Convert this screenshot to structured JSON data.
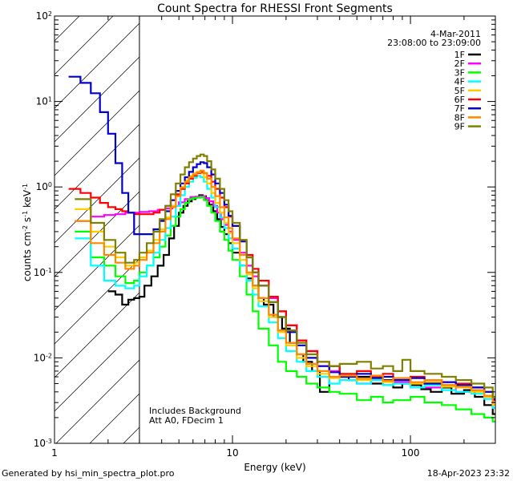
{
  "title": "Count Spectra for RHESSI Front Segments",
  "date": "4-Mar-2011",
  "time_range": "23:08:00 to 23:09:00",
  "footer_left": "Generated by hsi_min_spectra_plot.pro",
  "footer_right": "18-Apr-2023 23:32",
  "note_line1": "Includes Background",
  "note_line2": "Att A0, FDecim 1",
  "chart_data": {
    "type": "line",
    "title": "Count Spectra for RHESSI Front Segments",
    "xlabel": "Energy (keV)",
    "ylabel": "counts cm^-2 s^-1 keV^-1",
    "ylabel_parts": {
      "base": "counts cm",
      "e1": "-2",
      "s": " s",
      "e2": "-1",
      "k": " keV",
      "e3": "-1"
    },
    "xscale": "log",
    "yscale": "log",
    "xlim": [
      1,
      300
    ],
    "ylim": [
      0.001,
      100
    ],
    "x_ticks": [
      {
        "value": 1,
        "label": "1"
      },
      {
        "value": 10,
        "label": "10"
      },
      {
        "value": 100,
        "label": "100"
      }
    ],
    "y_ticks": [
      {
        "value": 0.001,
        "base": "10",
        "exp": "-3"
      },
      {
        "value": 0.01,
        "base": "10",
        "exp": "-2"
      },
      {
        "value": 0.1,
        "base": "10",
        "exp": "-1"
      },
      {
        "value": 1,
        "base": "10",
        "exp": "0"
      },
      {
        "value": 10,
        "base": "10",
        "exp": "1"
      },
      {
        "value": 100,
        "base": "10",
        "exp": "2"
      }
    ],
    "excluded_region": {
      "from": 1,
      "to": 3
    },
    "legend_position": "top-right",
    "series": [
      {
        "name": "1F",
        "color": "#000000",
        "x": [
          2.0,
          2.2,
          2.4,
          2.6,
          2.8,
          3.0,
          3.2,
          3.5,
          3.8,
          4.1,
          4.4,
          4.7,
          5.0,
          5.3,
          5.6,
          5.9,
          6.2,
          6.5,
          6.8,
          7.1,
          7.4,
          7.8,
          8.2,
          8.6,
          9.0,
          9.5,
          10,
          11,
          12,
          13,
          14,
          15,
          17,
          19,
          21,
          23,
          25,
          28,
          31,
          35,
          40,
          45,
          50,
          60,
          70,
          80,
          90,
          100,
          115,
          130,
          150,
          170,
          200,
          230,
          260,
          290
        ],
        "y": [
          0.06,
          0.055,
          0.042,
          0.048,
          0.05,
          0.052,
          0.07,
          0.09,
          0.12,
          0.16,
          0.25,
          0.35,
          0.5,
          0.6,
          0.68,
          0.72,
          0.76,
          0.8,
          0.78,
          0.7,
          0.62,
          0.52,
          0.42,
          0.34,
          0.28,
          0.22,
          0.17,
          0.12,
          0.085,
          0.07,
          0.05,
          0.042,
          0.03,
          0.022,
          0.015,
          0.011,
          0.009,
          0.007,
          0.004,
          0.008,
          0.006,
          0.0055,
          0.006,
          0.005,
          0.0055,
          0.0045,
          0.005,
          0.0048,
          0.0043,
          0.004,
          0.0045,
          0.0038,
          0.0042,
          0.0035,
          0.0028,
          0.0022
        ]
      },
      {
        "name": "2F",
        "color": "#ff00ff",
        "x": [
          1.3,
          1.6,
          1.9,
          2.2,
          2.5,
          2.8,
          3.0,
          3.4,
          3.8,
          4.2,
          4.6,
          5.0,
          5.4,
          5.8,
          6.2,
          6.6,
          7.0,
          7.4,
          7.8,
          8.2,
          8.6,
          9.0,
          9.5,
          10,
          11,
          12,
          13,
          14,
          16,
          18,
          20,
          23,
          26,
          30,
          35,
          40,
          50,
          60,
          70,
          80,
          100,
          120,
          150,
          180,
          220,
          260,
          290
        ],
        "y": [
          0.4,
          0.45,
          0.47,
          0.48,
          0.5,
          0.5,
          0.51,
          0.52,
          0.54,
          0.56,
          0.6,
          0.66,
          0.72,
          0.76,
          0.77,
          0.78,
          0.74,
          0.68,
          0.6,
          0.5,
          0.42,
          0.36,
          0.3,
          0.24,
          0.17,
          0.12,
          0.09,
          0.07,
          0.05,
          0.035,
          0.024,
          0.016,
          0.012,
          0.008,
          0.007,
          0.006,
          0.005,
          0.0055,
          0.0048,
          0.0052,
          0.005,
          0.0045,
          0.0048,
          0.004,
          0.0042,
          0.0035,
          0.0028
        ]
      },
      {
        "name": "3F",
        "color": "#00ff00",
        "x": [
          1.3,
          1.6,
          1.9,
          2.2,
          2.5,
          2.8,
          3.0,
          3.3,
          3.6,
          3.9,
          4.2,
          4.5,
          4.8,
          5.1,
          5.4,
          5.7,
          6.0,
          6.3,
          6.6,
          6.9,
          7.2,
          7.6,
          8.0,
          8.5,
          9.0,
          9.5,
          10,
          11,
          12,
          13,
          14,
          16,
          18,
          20,
          23,
          26,
          30,
          35,
          40,
          50,
          60,
          70,
          80,
          100,
          120,
          150,
          180,
          220,
          260,
          290
        ],
        "y": [
          0.3,
          0.15,
          0.12,
          0.09,
          0.075,
          0.08,
          0.1,
          0.12,
          0.15,
          0.2,
          0.27,
          0.35,
          0.45,
          0.55,
          0.65,
          0.72,
          0.74,
          0.75,
          0.76,
          0.7,
          0.6,
          0.5,
          0.4,
          0.3,
          0.24,
          0.18,
          0.14,
          0.09,
          0.055,
          0.035,
          0.022,
          0.014,
          0.009,
          0.007,
          0.006,
          0.005,
          0.0045,
          0.004,
          0.0038,
          0.0032,
          0.0035,
          0.003,
          0.0032,
          0.0035,
          0.003,
          0.0028,
          0.0025,
          0.0022,
          0.002,
          0.0018
        ]
      },
      {
        "name": "4F",
        "color": "#00ffff",
        "x": [
          1.3,
          1.6,
          1.9,
          2.2,
          2.5,
          2.8,
          3.0,
          3.3,
          3.6,
          3.9,
          4.2,
          4.5,
          4.8,
          5.1,
          5.4,
          5.7,
          6.0,
          6.3,
          6.6,
          6.9,
          7.2,
          7.6,
          8.0,
          8.5,
          9.0,
          9.5,
          10,
          11,
          12,
          13,
          14,
          16,
          18,
          20,
          23,
          26,
          30,
          35,
          40,
          50,
          60,
          70,
          80,
          100,
          120,
          150,
          180,
          220,
          260,
          290
        ],
        "y": [
          0.25,
          0.12,
          0.08,
          0.07,
          0.065,
          0.07,
          0.09,
          0.12,
          0.17,
          0.24,
          0.33,
          0.45,
          0.6,
          0.8,
          1.0,
          1.15,
          1.28,
          1.35,
          1.3,
          1.15,
          0.95,
          0.75,
          0.58,
          0.44,
          0.33,
          0.25,
          0.19,
          0.12,
          0.08,
          0.055,
          0.04,
          0.026,
          0.017,
          0.012,
          0.009,
          0.007,
          0.006,
          0.005,
          0.0055,
          0.005,
          0.0055,
          0.0048,
          0.005,
          0.0045,
          0.0048,
          0.0042,
          0.004,
          0.0038,
          0.0033,
          0.0026
        ]
      },
      {
        "name": "5F",
        "color": "#ffcc00",
        "x": [
          1.3,
          1.6,
          1.9,
          2.2,
          2.5,
          2.8,
          3.0,
          3.3,
          3.6,
          3.9,
          4.2,
          4.5,
          4.8,
          5.1,
          5.4,
          5.7,
          6.0,
          6.3,
          6.6,
          6.9,
          7.2,
          7.6,
          8.0,
          8.5,
          9.0,
          9.5,
          10,
          11,
          12,
          13,
          14,
          16,
          18,
          20,
          23,
          26,
          30,
          35,
          40,
          50,
          60,
          70,
          80,
          100,
          120,
          150,
          180,
          220,
          260,
          290
        ],
        "y": [
          0.55,
          0.3,
          0.2,
          0.15,
          0.12,
          0.13,
          0.15,
          0.18,
          0.24,
          0.32,
          0.44,
          0.6,
          0.8,
          1.0,
          1.2,
          1.35,
          1.45,
          1.5,
          1.45,
          1.3,
          1.1,
          0.85,
          0.65,
          0.5,
          0.38,
          0.29,
          0.22,
          0.14,
          0.095,
          0.065,
          0.046,
          0.03,
          0.02,
          0.014,
          0.01,
          0.008,
          0.0065,
          0.0058,
          0.006,
          0.0055,
          0.006,
          0.0052,
          0.0055,
          0.005,
          0.0052,
          0.0046,
          0.0045,
          0.004,
          0.0035,
          0.0028
        ]
      },
      {
        "name": "6F",
        "color": "#ff0000",
        "x": [
          1.2,
          1.4,
          1.6,
          1.8,
          2.0,
          2.2,
          2.4,
          2.6,
          2.8,
          3.0,
          3.3,
          3.6,
          3.9,
          4.2,
          4.5,
          4.8,
          5.1,
          5.4,
          5.7,
          6.0,
          6.3,
          6.6,
          6.9,
          7.2,
          7.6,
          8.0,
          8.5,
          9.0,
          9.5,
          10,
          11,
          12,
          13,
          14,
          16,
          18,
          20,
          23,
          26,
          30,
          35,
          40,
          50,
          60,
          70,
          80,
          100,
          120,
          150,
          180,
          220,
          260,
          290
        ],
        "y": [
          0.95,
          0.85,
          0.75,
          0.65,
          0.58,
          0.55,
          0.52,
          0.5,
          0.48,
          0.48,
          0.48,
          0.5,
          0.54,
          0.6,
          0.7,
          0.82,
          0.95,
          1.1,
          1.25,
          1.35,
          1.45,
          1.5,
          1.45,
          1.35,
          1.15,
          0.95,
          0.75,
          0.58,
          0.45,
          0.35,
          0.24,
          0.16,
          0.11,
          0.08,
          0.052,
          0.035,
          0.024,
          0.016,
          0.012,
          0.009,
          0.008,
          0.0065,
          0.007,
          0.006,
          0.0065,
          0.0058,
          0.006,
          0.0055,
          0.0052,
          0.005,
          0.0045,
          0.004,
          0.0032
        ]
      },
      {
        "name": "7F",
        "color": "#0000cc",
        "x": [
          1.2,
          1.4,
          1.6,
          1.8,
          2.0,
          2.2,
          2.4,
          2.6,
          2.8,
          3.0,
          3.3,
          3.6,
          3.9,
          4.2,
          4.5,
          4.8,
          5.1,
          5.4,
          5.7,
          6.0,
          6.3,
          6.6,
          6.9,
          7.2,
          7.6,
          8.0,
          8.5,
          9.0,
          9.5,
          10,
          11,
          12,
          13,
          14,
          16,
          18,
          20,
          23,
          26,
          30,
          35,
          40,
          50,
          60,
          70,
          80,
          100,
          120,
          150,
          180,
          220,
          260,
          290
        ],
        "y": [
          19.5,
          16.5,
          12.5,
          7.5,
          4.2,
          1.9,
          0.85,
          0.5,
          0.28,
          0.28,
          0.28,
          0.32,
          0.4,
          0.52,
          0.7,
          0.9,
          1.1,
          1.3,
          1.5,
          1.7,
          1.85,
          1.95,
          1.9,
          1.7,
          1.4,
          1.1,
          0.85,
          0.62,
          0.46,
          0.35,
          0.23,
          0.15,
          0.1,
          0.07,
          0.045,
          0.03,
          0.02,
          0.014,
          0.01,
          0.008,
          0.0068,
          0.006,
          0.0065,
          0.0058,
          0.006,
          0.0055,
          0.0058,
          0.005,
          0.0052,
          0.0048,
          0.0045,
          0.004,
          0.0033
        ]
      },
      {
        "name": "8F",
        "color": "#ff8800",
        "x": [
          1.3,
          1.6,
          1.9,
          2.2,
          2.5,
          2.8,
          3.0,
          3.3,
          3.6,
          3.9,
          4.2,
          4.5,
          4.8,
          5.1,
          5.4,
          5.7,
          6.0,
          6.3,
          6.6,
          6.9,
          7.2,
          7.6,
          8.0,
          8.5,
          9.0,
          9.5,
          10,
          11,
          12,
          13,
          14,
          16,
          18,
          20,
          23,
          26,
          30,
          35,
          40,
          50,
          60,
          70,
          80,
          100,
          120,
          150,
          180,
          220,
          260,
          290
        ],
        "y": [
          0.4,
          0.22,
          0.16,
          0.13,
          0.11,
          0.12,
          0.14,
          0.17,
          0.22,
          0.3,
          0.42,
          0.58,
          0.78,
          0.98,
          1.15,
          1.3,
          1.4,
          1.48,
          1.55,
          1.45,
          1.25,
          1.0,
          0.78,
          0.58,
          0.44,
          0.33,
          0.25,
          0.16,
          0.1,
          0.07,
          0.05,
          0.032,
          0.021,
          0.015,
          0.011,
          0.0085,
          0.007,
          0.006,
          0.0062,
          0.0057,
          0.0062,
          0.0054,
          0.0058,
          0.0052,
          0.0055,
          0.0048,
          0.0046,
          0.0042,
          0.0036,
          0.003
        ]
      },
      {
        "name": "9F",
        "color": "#808000",
        "x": [
          1.3,
          1.6,
          1.9,
          2.2,
          2.5,
          2.8,
          3.0,
          3.3,
          3.6,
          3.9,
          4.2,
          4.5,
          4.8,
          5.1,
          5.4,
          5.7,
          6.0,
          6.3,
          6.6,
          6.9,
          7.2,
          7.6,
          8.0,
          8.5,
          9.0,
          9.5,
          10,
          11,
          12,
          13,
          14,
          16,
          18,
          20,
          23,
          26,
          30,
          35,
          40,
          50,
          60,
          70,
          80,
          90,
          100,
          120,
          150,
          180,
          220,
          260,
          290
        ],
        "y": [
          0.72,
          0.38,
          0.24,
          0.17,
          0.13,
          0.14,
          0.17,
          0.22,
          0.3,
          0.42,
          0.6,
          0.82,
          1.1,
          1.4,
          1.7,
          1.95,
          2.15,
          2.3,
          2.4,
          2.3,
          2.0,
          1.6,
          1.25,
          0.95,
          0.7,
          0.52,
          0.38,
          0.24,
          0.15,
          0.1,
          0.07,
          0.045,
          0.03,
          0.021,
          0.015,
          0.011,
          0.009,
          0.008,
          0.0085,
          0.009,
          0.0075,
          0.008,
          0.007,
          0.0095,
          0.007,
          0.0065,
          0.006,
          0.0055,
          0.005,
          0.0045,
          0.0035
        ]
      }
    ]
  }
}
